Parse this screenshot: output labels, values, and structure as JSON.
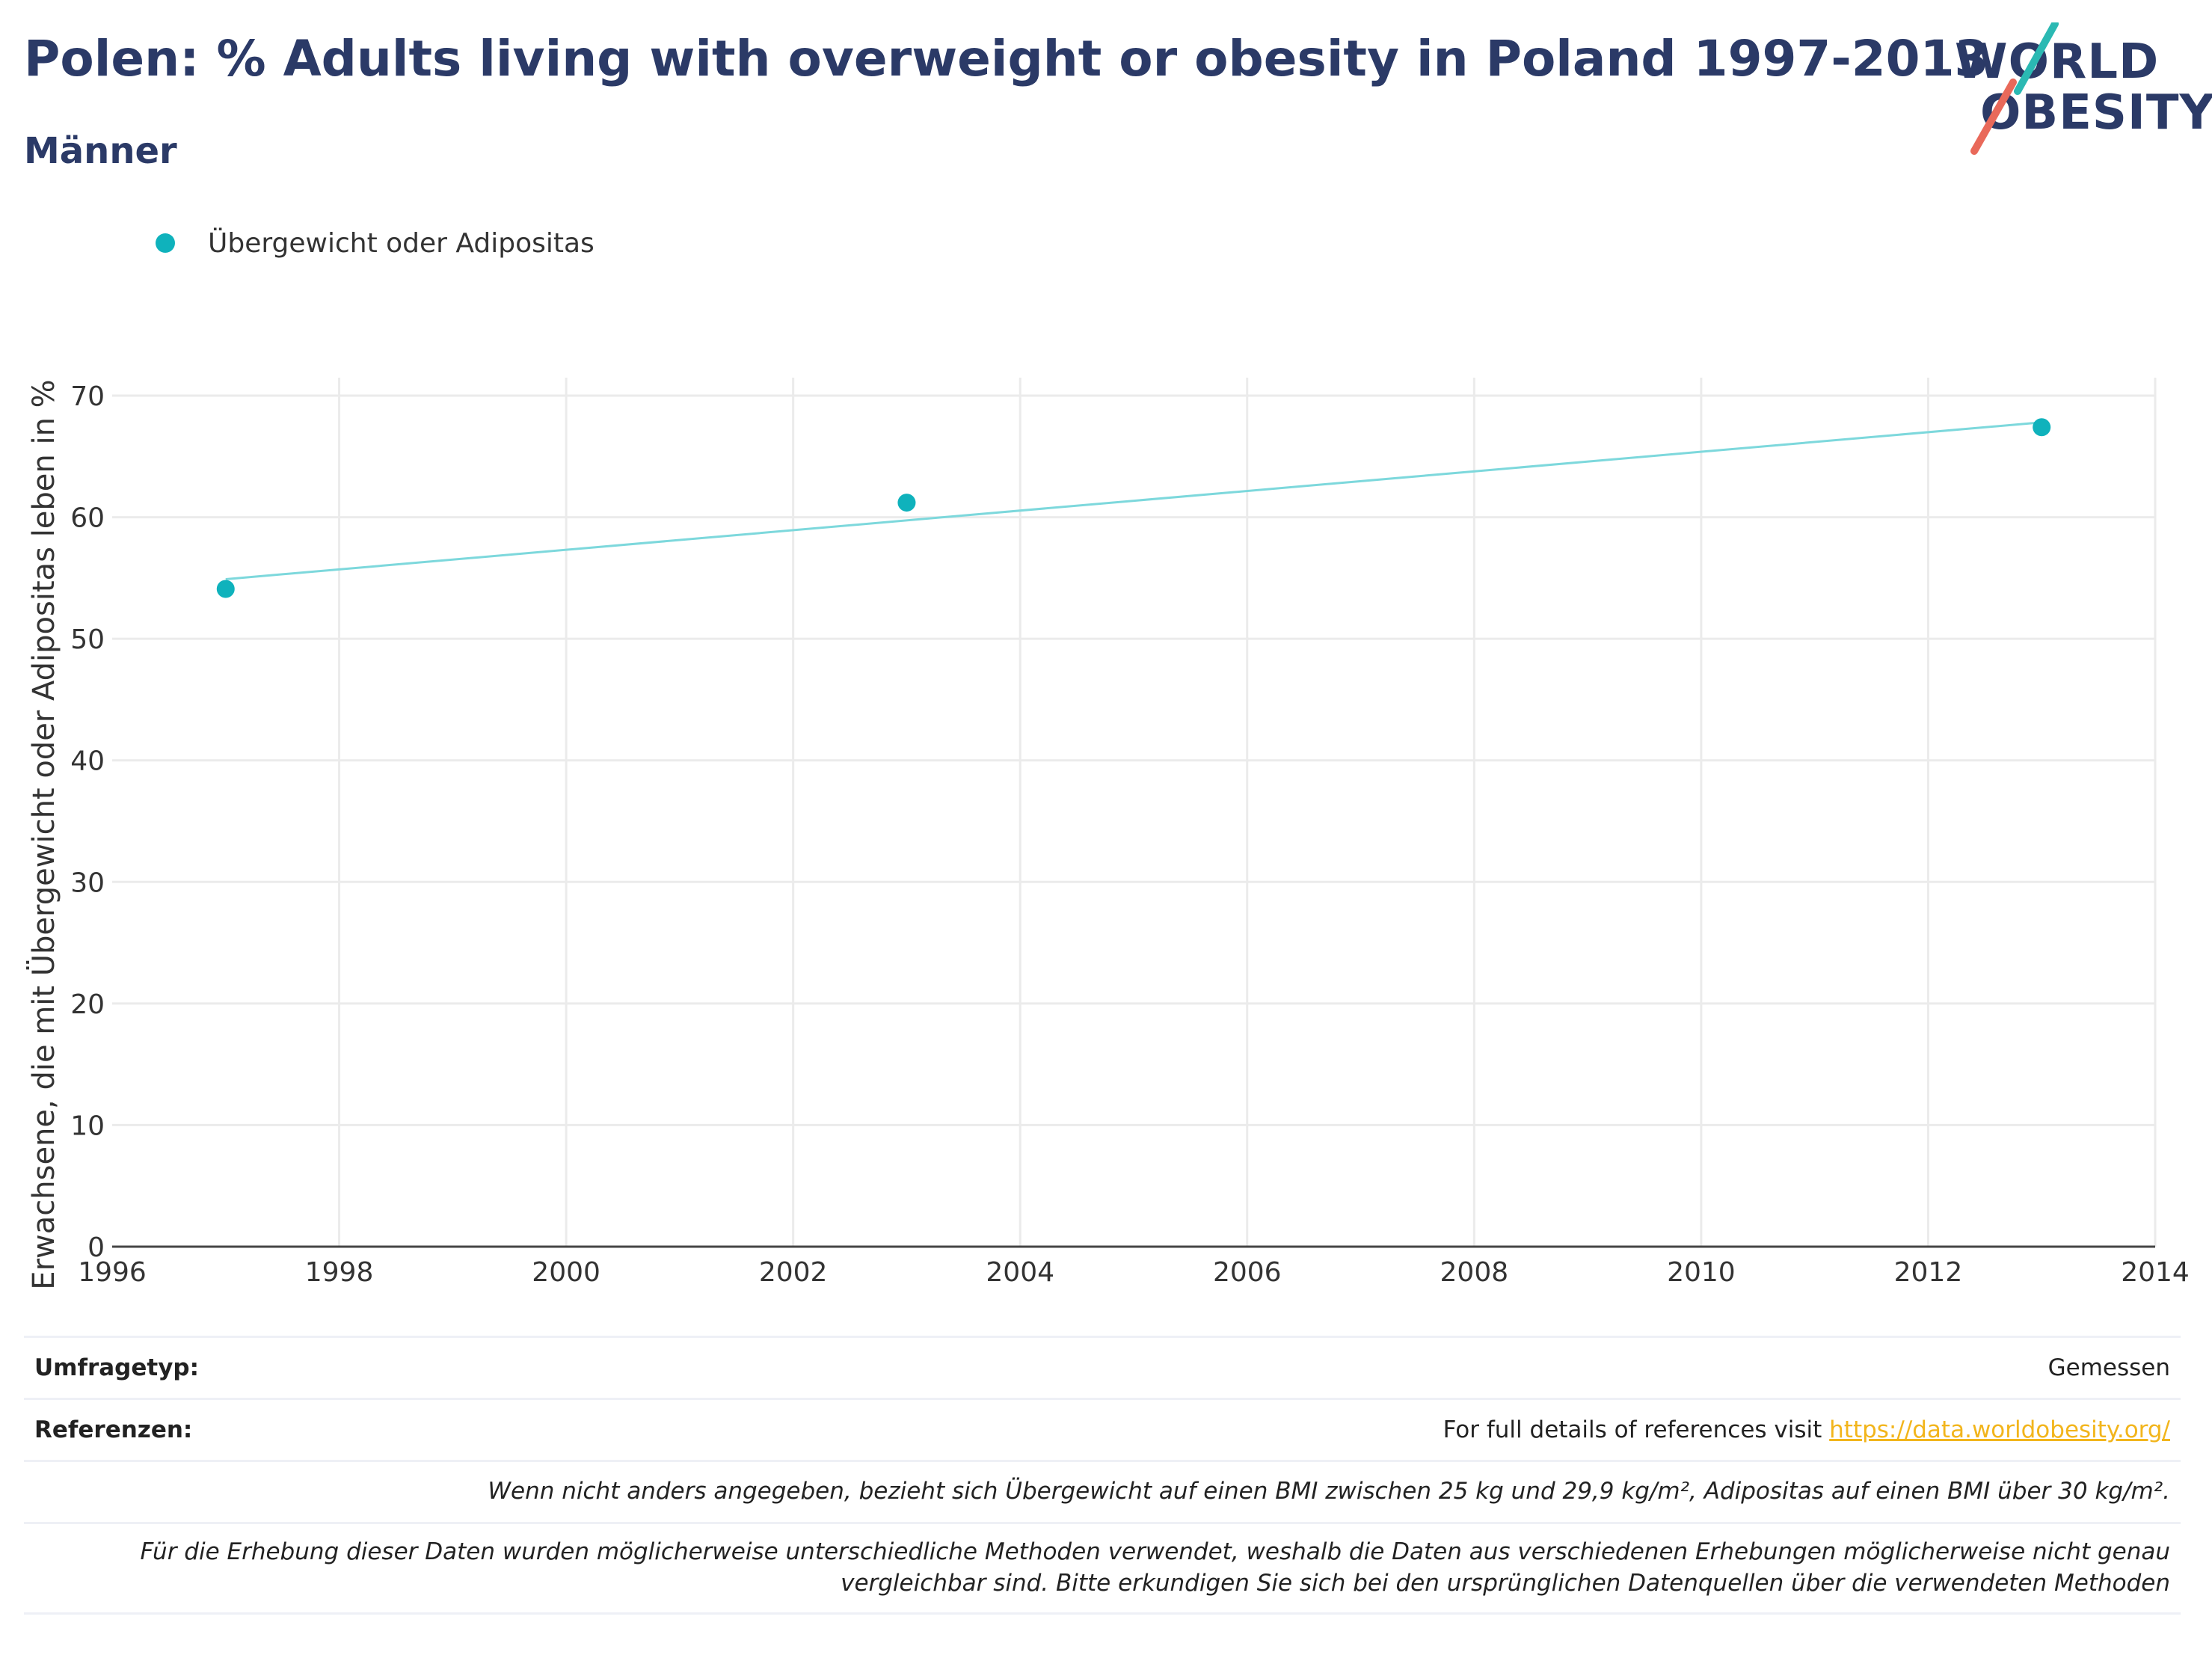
{
  "header": {
    "title": "Polen: % Adults living with overweight or obesity in Poland 1997-2013",
    "subtitle": "Männer"
  },
  "logo": {
    "line1": "WORLD",
    "line2": "OBESITY",
    "colors": {
      "text": "#2b3a67",
      "teal": "#2bb9b3",
      "coral": "#e9695a"
    }
  },
  "legend": {
    "label": "Übergewicht oder Adipositas",
    "color": "#0fb2bc"
  },
  "chart_data": {
    "type": "scatter",
    "title": "Polen: % Adults living with overweight or obesity in Poland 1997-2013",
    "subtitle": "Männer",
    "xlabel": "",
    "ylabel": "Erwachsene, die mit Übergewicht oder Adipositas leben in %",
    "xlim": [
      1996,
      2014
    ],
    "ylim": [
      0,
      70
    ],
    "xticks": [
      1996,
      1998,
      2000,
      2002,
      2004,
      2006,
      2008,
      2010,
      2012,
      2014
    ],
    "yticks": [
      0,
      10,
      20,
      30,
      40,
      50,
      60,
      70
    ],
    "grid": true,
    "legend_position": "top-left",
    "series": [
      {
        "name": "Übergewicht oder Adipositas",
        "color": "#0fb2bc",
        "x": [
          1997,
          2003,
          2013
        ],
        "y": [
          54.1,
          61.2,
          67.4
        ]
      }
    ],
    "trendline": {
      "color": "#7dd8dc",
      "x": [
        1997,
        2013
      ],
      "y": [
        54.9,
        67.8
      ]
    }
  },
  "footer": {
    "survey_label": "Umfragetyp:",
    "survey_value": "Gemessen",
    "refs_label": "Referenzen:",
    "refs_text": "For full details of references visit ",
    "refs_link": "https://data.worldobesity.org/",
    "note1": "Wenn nicht anders angegeben, bezieht sich Übergewicht auf einen BMI zwischen 25 kg und 29,9 kg/m², Adipositas auf einen BMI über 30 kg/m².",
    "note2_line1": "Für die Erhebung dieser Daten wurden möglicherweise unterschiedliche Methoden verwendet, weshalb die Daten aus verschiedenen Erhebungen möglicherweise nicht genau",
    "note2_line2": "vergleichbar sind. Bitte erkundigen Sie sich bei den ursprünglichen Datenquellen über die verwendeten Methoden"
  }
}
